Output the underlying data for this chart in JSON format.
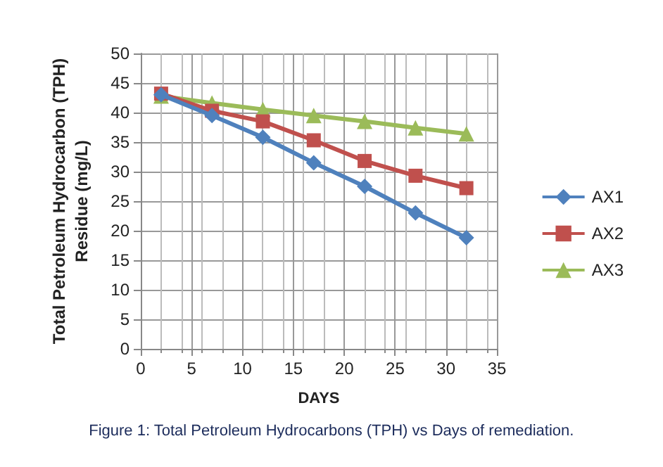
{
  "chart_data": {
    "type": "line",
    "xlabel": "DAYS",
    "ylabel": "Total Petroleum Hydrocarbon (TPH)\nResidue (mg/L)",
    "annotations": [
      "Figure 1: Total Petroleum Hydrocarbons (TPH) vs Days of remediation."
    ],
    "x": [
      2,
      7,
      12,
      17,
      22,
      27,
      32
    ],
    "series": [
      {
        "name": "AX1",
        "color": "#4f81bd",
        "marker": "diamond",
        "values": [
          43,
          39.5,
          35.8,
          31.5,
          27.5,
          23,
          18.8
        ]
      },
      {
        "name": "AX2",
        "color": "#c0504d",
        "marker": "square",
        "values": [
          43.2,
          40.3,
          38.5,
          35.3,
          31.8,
          29.3,
          27.2
        ]
      },
      {
        "name": "AX3",
        "color": "#9bbb59",
        "marker": "triangle",
        "values": [
          42.8,
          41.6,
          40.5,
          39.5,
          38.5,
          37.4,
          36.4
        ]
      }
    ],
    "xlim": [
      0,
      35
    ],
    "xticks": [
      0,
      5,
      10,
      15,
      20,
      25,
      30,
      35
    ],
    "ylim": [
      0,
      50
    ],
    "yticks": [
      0,
      5,
      10,
      15,
      20,
      25,
      30,
      35,
      40,
      45,
      50
    ],
    "grid": true,
    "legend": "right"
  }
}
